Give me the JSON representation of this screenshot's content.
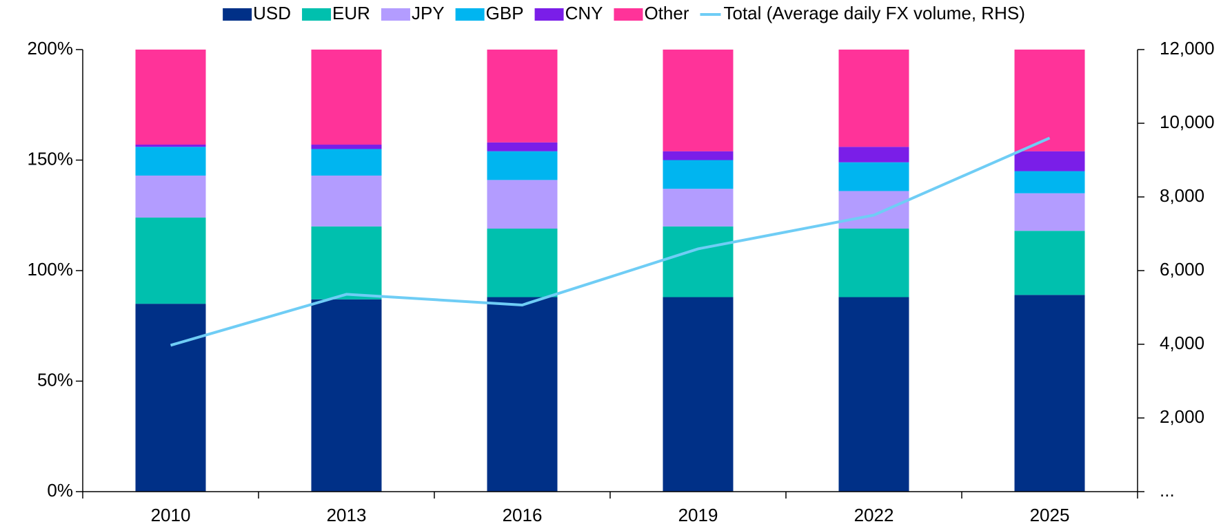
{
  "chart_data": {
    "type": "stacked_bar_line",
    "categories": [
      "2010",
      "2013",
      "2016",
      "2019",
      "2022",
      "2025"
    ],
    "series": [
      {
        "name": "USD",
        "color": "#003087",
        "values": [
          85,
          87,
          88,
          88,
          88,
          89
        ]
      },
      {
        "name": "EUR",
        "color": "#00c0ae",
        "values": [
          39,
          33,
          31,
          32,
          31,
          29
        ]
      },
      {
        "name": "JPY",
        "color": "#b39cff",
        "values": [
          19,
          23,
          22,
          17,
          17,
          17
        ]
      },
      {
        "name": "GBP",
        "color": "#00b5f0",
        "values": [
          13,
          12,
          13,
          13,
          13,
          10
        ]
      },
      {
        "name": "CNY",
        "color": "#7a1ee8",
        "values": [
          1,
          2,
          4,
          4,
          7,
          9
        ]
      },
      {
        "name": "Other",
        "color": "#ff3399",
        "values": [
          43,
          43,
          42,
          46,
          44,
          46
        ]
      },
      {
        "name": "Total (Average daily FX volume, RHS)",
        "color": "#6fcdf5",
        "axis": "y2",
        "type": "line",
        "values": [
          3973,
          5357,
          5066,
          6590,
          7506,
          9600
        ]
      }
    ],
    "ylim": [
      0,
      200
    ],
    "yticks": [
      {
        "value": 0,
        "label": "0%"
      },
      {
        "value": 50,
        "label": "50%"
      },
      {
        "value": 100,
        "label": "100%"
      },
      {
        "value": 150,
        "label": "150%"
      },
      {
        "value": 200,
        "label": "200%"
      }
    ],
    "y2lim": [
      0,
      12000
    ],
    "y2ticks": [
      {
        "value": 0,
        "label": "..."
      },
      {
        "value": 2000,
        "label": "2,000"
      },
      {
        "value": 4000,
        "label": "4,000"
      },
      {
        "value": 6000,
        "label": "6,000"
      },
      {
        "value": 8000,
        "label": "8,000"
      },
      {
        "value": 10000,
        "label": "10,000"
      },
      {
        "value": 12000,
        "label": "12,000"
      }
    ],
    "legend": "top"
  }
}
